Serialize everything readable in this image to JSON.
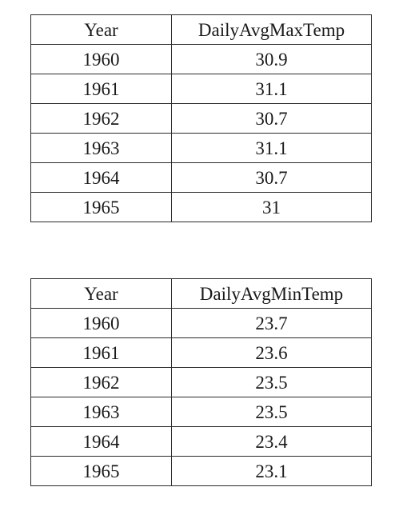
{
  "chart_data": [
    {
      "type": "table",
      "columns": [
        "Year",
        "DailyAvgMaxTemp"
      ],
      "rows": [
        [
          "1960",
          "30.9"
        ],
        [
          "1961",
          "31.1"
        ],
        [
          "1962",
          "30.7"
        ],
        [
          "1963",
          "31.1"
        ],
        [
          "1964",
          "30.7"
        ],
        [
          "1965",
          "31"
        ]
      ]
    },
    {
      "type": "table",
      "columns": [
        "Year",
        "DailyAvgMinTemp"
      ],
      "rows": [
        [
          "1960",
          "23.7"
        ],
        [
          "1961",
          "23.6"
        ],
        [
          "1962",
          "23.5"
        ],
        [
          "1963",
          "23.5"
        ],
        [
          "1964",
          "23.4"
        ],
        [
          "1965",
          "23.1"
        ]
      ]
    }
  ]
}
